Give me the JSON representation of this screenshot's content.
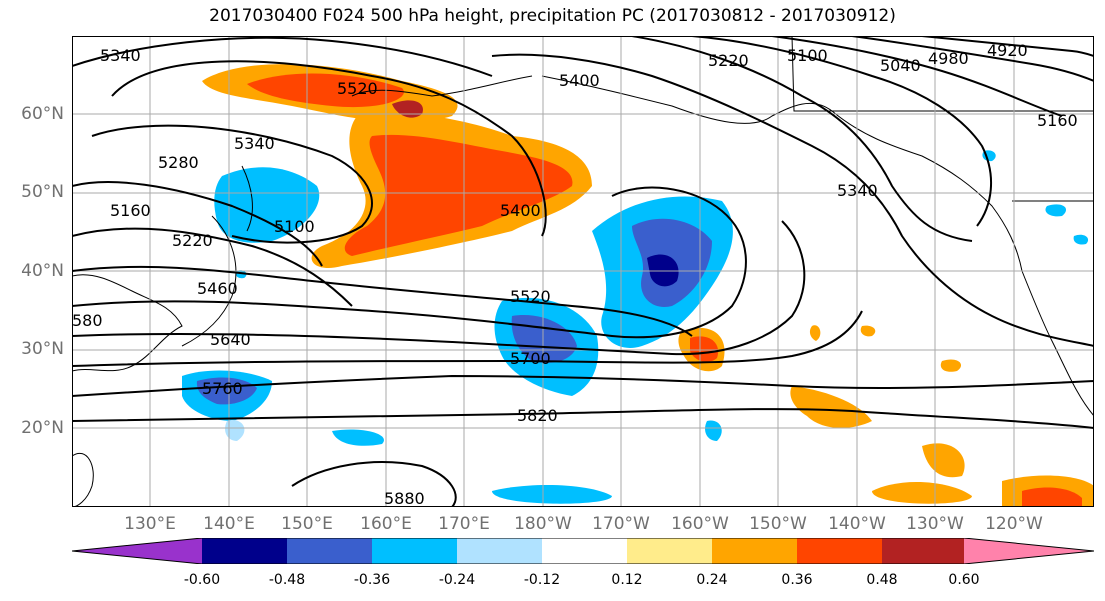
{
  "title": "2017030400 F024 500 hPa height, precipitation PC (2017030812 - 2017030912)",
  "lat_labels": [
    "60°N",
    "50°N",
    "40°N",
    "30°N",
    "20°N"
  ],
  "lon_labels": [
    "130°E",
    "140°E",
    "150°E",
    "160°E",
    "170°E",
    "180°W",
    "170°W",
    "160°W",
    "150°W",
    "140°W",
    "130°W",
    "120°W"
  ],
  "contour_labels": [
    "5340",
    "5520",
    "5400",
    "5220",
    "5100",
    "5040",
    "4980",
    "4920",
    "5160",
    "5280",
    "5340",
    "5160",
    "5220",
    "5100",
    "5400",
    "5340",
    "5460",
    "5520",
    "580",
    "5640",
    "5700",
    "5760",
    "5820",
    "5880"
  ],
  "colorbar": {
    "ticks": [
      "-0.60",
      "-0.48",
      "-0.36",
      "-0.24",
      "-0.12",
      "0.12",
      "0.24",
      "0.36",
      "0.48",
      "0.60"
    ],
    "colors": [
      "#9932cc",
      "#00008b",
      "#3a5fcd",
      "#00bfff",
      "#b0e2ff",
      "#ffffff",
      "#ffec8b",
      "#ffa500",
      "#ff4500",
      "#b22222",
      "#ff82ab"
    ]
  }
}
